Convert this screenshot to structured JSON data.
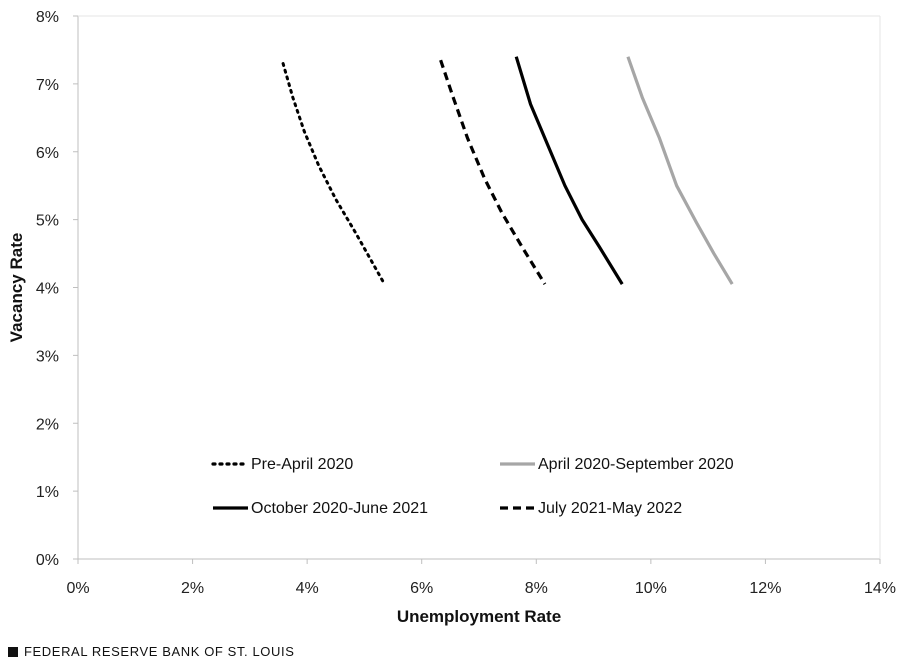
{
  "chart_data": {
    "type": "line",
    "xlabel": "Unemployment Rate",
    "ylabel": "Vacancy Rate",
    "xlim": [
      0,
      14
    ],
    "ylim": [
      0,
      8
    ],
    "x_ticks": [
      "0%",
      "2%",
      "4%",
      "6%",
      "8%",
      "10%",
      "12%",
      "14%"
    ],
    "y_ticks": [
      "0%",
      "1%",
      "2%",
      "3%",
      "4%",
      "5%",
      "6%",
      "7%",
      "8%"
    ],
    "grid": false,
    "legend_placement": "bottom-center",
    "series": [
      {
        "name": "Pre-April 2020",
        "style": "dotted",
        "color": "#000000",
        "x": [
          3.58,
          3.75,
          3.95,
          4.2,
          4.5,
          4.85,
          5.35
        ],
        "y": [
          7.3,
          6.8,
          6.3,
          5.8,
          5.3,
          4.8,
          4.05
        ]
      },
      {
        "name": "April 2020-September 2020",
        "style": "solid",
        "color": "#a6a6a6",
        "x": [
          9.6,
          9.85,
          10.15,
          10.45,
          10.8,
          11.1,
          11.42
        ],
        "y": [
          7.4,
          6.8,
          6.2,
          5.5,
          4.95,
          4.5,
          4.05
        ]
      },
      {
        "name": "October 2020-June 2021",
        "style": "solid",
        "color": "#000000",
        "x": [
          7.65,
          7.9,
          8.2,
          8.5,
          8.8,
          9.1,
          9.5
        ],
        "y": [
          7.4,
          6.7,
          6.1,
          5.5,
          5.0,
          4.6,
          4.05
        ]
      },
      {
        "name": "July 2021-May 2022",
        "style": "dashed",
        "color": "#000000",
        "x": [
          6.33,
          6.55,
          6.8,
          7.1,
          7.4,
          7.75,
          8.15
        ],
        "y": [
          7.35,
          6.8,
          6.2,
          5.6,
          5.1,
          4.6,
          4.05
        ]
      }
    ]
  },
  "footer": {
    "source": "FEDERAL RESERVE BANK OF ST. LOUIS"
  }
}
